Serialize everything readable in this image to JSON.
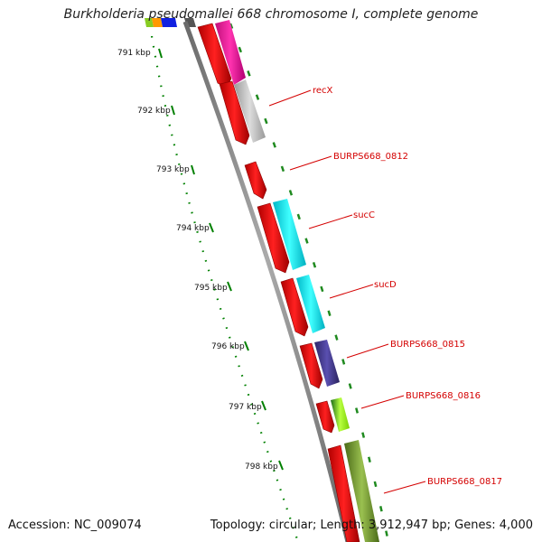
{
  "map": {
    "title": "Burkholderia pseudomallei 668 chromosome I, complete genome"
  },
  "footer": {
    "accession": "Accession: NC_009074",
    "topology": "Topology: circular; Length: 3,912,947 bp; Genes: 4,000"
  },
  "ticks": [
    "791 kbp",
    "792 kbp",
    "793 kbp",
    "794 kbp",
    "795 kbp",
    "796 kbp",
    "797 kbp",
    "798 kbp"
  ],
  "gene_labels": [
    "recX",
    "BURPS668_0812",
    "sucC",
    "sucD",
    "BURPS668_0815",
    "BURPS668_0816",
    "BURPS668_0817"
  ],
  "colors": {
    "cds": "#ff0000",
    "backbone": "#808080",
    "tick": "#008000",
    "label": "#d40000",
    "recX_feature": "#ff1493",
    "gray_feature": "#c0c0c0",
    "sucC_feature": "#00ffff",
    "sucD_feature": "#00e5ee",
    "BURPS668_0815_feature": "#483d8b",
    "BURPS668_0816_feature": "#7cfc00",
    "BURPS668_0817_feature": "#6b8e23"
  }
}
